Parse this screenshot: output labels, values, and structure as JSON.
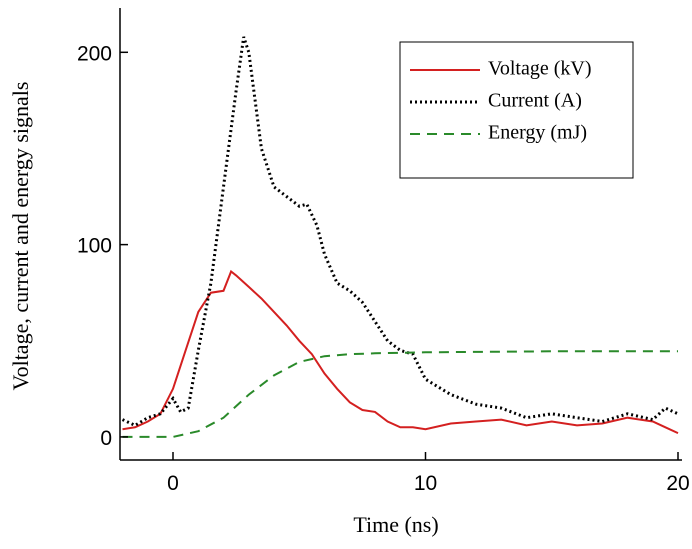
{
  "chart_data": {
    "type": "line",
    "xlabel": "Time (ns)",
    "ylabel": "Voltage, current and energy signals",
    "xlim": [
      -2,
      20
    ],
    "ylim": [
      -12,
      222
    ],
    "xticks": [
      0,
      10,
      20
    ],
    "yticks": [
      0,
      100,
      200
    ],
    "legend": "upper right",
    "series": [
      {
        "name": "Voltage (kV)",
        "color": "#d42020",
        "style": "solid",
        "x": [
          -2,
          -1.5,
          -1,
          -0.5,
          0,
          0.5,
          1,
          1.5,
          2,
          2.3,
          2.5,
          3,
          3.5,
          4,
          4.5,
          5,
          5.5,
          6,
          6.5,
          7,
          7.5,
          8,
          8.5,
          9,
          9.5,
          10,
          11,
          12,
          13,
          14,
          15,
          16,
          17,
          18,
          19,
          19.5,
          20
        ],
        "values": [
          4,
          5,
          8,
          12,
          25,
          45,
          65,
          75,
          76,
          86,
          84,
          78,
          72,
          65,
          58,
          50,
          43,
          33,
          25,
          18,
          14,
          13,
          8,
          5,
          5,
          4,
          7,
          8,
          9,
          6,
          8,
          6,
          7,
          10,
          8,
          5,
          2
        ]
      },
      {
        "name": "Current (A)",
        "color": "#000000",
        "style": "dotted",
        "x": [
          -2,
          -1.5,
          -1,
          -0.5,
          0,
          0.3,
          0.6,
          1,
          1.5,
          2,
          2.5,
          2.8,
          3,
          3.5,
          4,
          4.5,
          5,
          5.3,
          5.7,
          6,
          6.5,
          7,
          7.5,
          8,
          8.5,
          9,
          9.5,
          10,
          11,
          12,
          13,
          14,
          15,
          16,
          17,
          18,
          19,
          19.5,
          20
        ],
        "values": [
          9,
          6,
          10,
          12,
          20,
          13,
          15,
          45,
          80,
          130,
          180,
          208,
          200,
          150,
          130,
          125,
          120,
          121,
          110,
          95,
          80,
          76,
          70,
          60,
          50,
          45,
          43,
          30,
          22,
          17,
          15,
          10,
          12,
          10,
          8,
          12,
          9,
          15,
          12
        ]
      },
      {
        "name": "Energy (mJ)",
        "color": "#2a8a2a",
        "style": "dashed",
        "x": [
          -2,
          0,
          1,
          2,
          3,
          4,
          5,
          6,
          7,
          8,
          10,
          15,
          20
        ],
        "values": [
          0,
          0,
          3,
          10,
          22,
          32,
          39,
          42,
          43,
          43.5,
          44,
          44.5,
          44.5
        ]
      }
    ]
  }
}
